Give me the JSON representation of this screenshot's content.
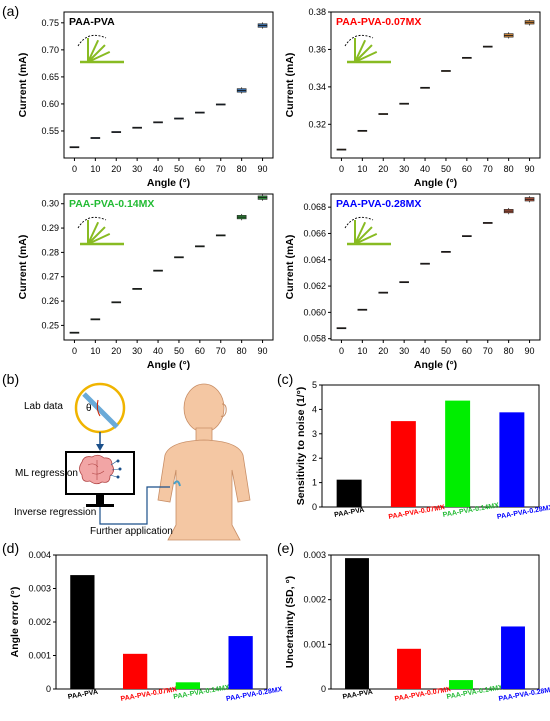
{
  "panel_labels": [
    "(a)",
    "(b)",
    "(c)",
    "(d)",
    "(e)"
  ],
  "diagram_b": {
    "lab_data_label": "Lab data",
    "theta_label": "θ",
    "ml_label": "ML regression",
    "inverse_label": "Inverse regression",
    "further_label": "Further application"
  },
  "colors": {
    "black": "#000000",
    "red": "#ff0000",
    "green": "#22bb33",
    "bright_green": "#00ee00",
    "blue": "#0000ff",
    "box_blue": "#3d6fa8",
    "box_orange": "#c8823a",
    "box_green": "#2f8f3a",
    "box_red": "#b5573f",
    "skin": "#f4c7a3"
  },
  "chart_data": [
    {
      "type": "box",
      "title": "PAA-PVA",
      "title_color": "#000000",
      "xlabel": "Angle (°)",
      "ylabel": "Current (mA)",
      "x": [
        0,
        10,
        20,
        30,
        40,
        50,
        60,
        70,
        80,
        90
      ],
      "values": [
        0.52,
        0.537,
        0.548,
        0.556,
        0.566,
        0.573,
        0.584,
        0.599,
        0.625,
        0.745
      ],
      "ylim": [
        0.5,
        0.77
      ],
      "yticks": [
        0.55,
        0.6,
        0.65,
        0.7,
        0.75
      ],
      "ytick_labels": [
        "0.55",
        "0.60",
        "0.65",
        "0.70",
        "0.75"
      ],
      "box_color": "#3d6fa8"
    },
    {
      "type": "box",
      "title": "PAA-PVA-0.07MX",
      "title_color": "#ff0000",
      "xlabel": "Angle (°)",
      "ylabel": "Current (mA)",
      "x": [
        0,
        10,
        20,
        30,
        40,
        50,
        60,
        70,
        80,
        90
      ],
      "values": [
        0.3065,
        0.3165,
        0.3255,
        0.331,
        0.3395,
        0.3485,
        0.3555,
        0.3615,
        0.3675,
        0.3745
      ],
      "ylim": [
        0.302,
        0.38
      ],
      "yticks": [
        0.32,
        0.34,
        0.36,
        0.38
      ],
      "ytick_labels": [
        "0.32",
        "0.34",
        "0.36",
        "0.38"
      ],
      "box_color": "#c8823a"
    },
    {
      "type": "box",
      "title": "PAA-PVA-0.14MX",
      "title_color": "#22bb33",
      "xlabel": "Angle (°)",
      "ylabel": "Current (mA)",
      "x": [
        0,
        10,
        20,
        30,
        40,
        50,
        60,
        70,
        80,
        90
      ],
      "values": [
        0.247,
        0.2525,
        0.2595,
        0.265,
        0.2725,
        0.278,
        0.2825,
        0.287,
        0.2945,
        0.3025
      ],
      "ylim": [
        0.244,
        0.304
      ],
      "yticks": [
        0.25,
        0.26,
        0.27,
        0.28,
        0.29,
        0.3
      ],
      "ytick_labels": [
        "0.25",
        "0.26",
        "0.27",
        "0.28",
        "0.29",
        "0.30"
      ],
      "box_color": "#2f8f3a"
    },
    {
      "type": "box",
      "title": "PAA-PVA-0.28MX",
      "title_color": "#0000ff",
      "xlabel": "Angle (°)",
      "ylabel": "Current (mA)",
      "x": [
        0,
        10,
        20,
        30,
        40,
        50,
        60,
        70,
        80,
        90
      ],
      "values": [
        0.0588,
        0.0602,
        0.0615,
        0.0623,
        0.0637,
        0.0646,
        0.0658,
        0.0668,
        0.0677,
        0.0686
      ],
      "ylim": [
        0.0579,
        0.069
      ],
      "yticks": [
        0.058,
        0.06,
        0.062,
        0.064,
        0.066,
        0.068
      ],
      "ytick_labels": [
        "0.058",
        "0.060",
        "0.062",
        "0.064",
        "0.066",
        "0.068"
      ],
      "box_color": "#b5573f"
    },
    {
      "type": "bar",
      "categories": [
        "PAA-PVA",
        "PAA-PVA-0.07MX",
        "PAA-PVA-0.14MX",
        "PAA-PVA-0.28MX"
      ],
      "values": [
        1.12,
        3.52,
        4.36,
        3.88
      ],
      "colors": [
        "#000000",
        "#ff0000",
        "#00ee00",
        "#0000ff"
      ],
      "label_colors": [
        "#000000",
        "#ff0000",
        "#22bb33",
        "#0000ff"
      ],
      "ylabel": "Sensitivity to noise (1/°)",
      "ylim": [
        0,
        5
      ],
      "yticks": [
        0,
        1,
        2,
        3,
        4,
        5
      ],
      "ytick_labels": [
        "0",
        "1",
        "2",
        "3",
        "4",
        "5"
      ]
    },
    {
      "type": "bar",
      "categories": [
        "PAA-PVA",
        "PAA-PVA-0.07MX",
        "PAA-PVA-0.14MX",
        "PAA-PVA-0.28MX"
      ],
      "values": [
        0.0034,
        0.00105,
        0.0002,
        0.00158
      ],
      "colors": [
        "#000000",
        "#ff0000",
        "#00ee00",
        "#0000ff"
      ],
      "label_colors": [
        "#000000",
        "#ff0000",
        "#22bb33",
        "#0000ff"
      ],
      "ylabel": "Angle error (°)",
      "ylim": [
        0,
        0.004
      ],
      "yticks": [
        0,
        0.001,
        0.002,
        0.003,
        0.004
      ],
      "ytick_labels": [
        "0",
        "0.001",
        "0.002",
        "0.003",
        "0.004"
      ]
    },
    {
      "type": "bar",
      "categories": [
        "PAA-PVA",
        "PAA-PVA-0.07MX",
        "PAA-PVA-0.14MX",
        "PAA-PVA-0.28MX"
      ],
      "values": [
        0.00293,
        0.0009,
        0.0002,
        0.0014
      ],
      "colors": [
        "#000000",
        "#ff0000",
        "#00ee00",
        "#0000ff"
      ],
      "label_colors": [
        "#000000",
        "#ff0000",
        "#22bb33",
        "#0000ff"
      ],
      "ylabel": "Uncertainty (SD, °)",
      "ylim": [
        0,
        0.003
      ],
      "yticks": [
        0,
        0.001,
        0.002,
        0.003
      ],
      "ytick_labels": [
        "0",
        "0.001",
        "0.002",
        "0.003"
      ]
    }
  ]
}
